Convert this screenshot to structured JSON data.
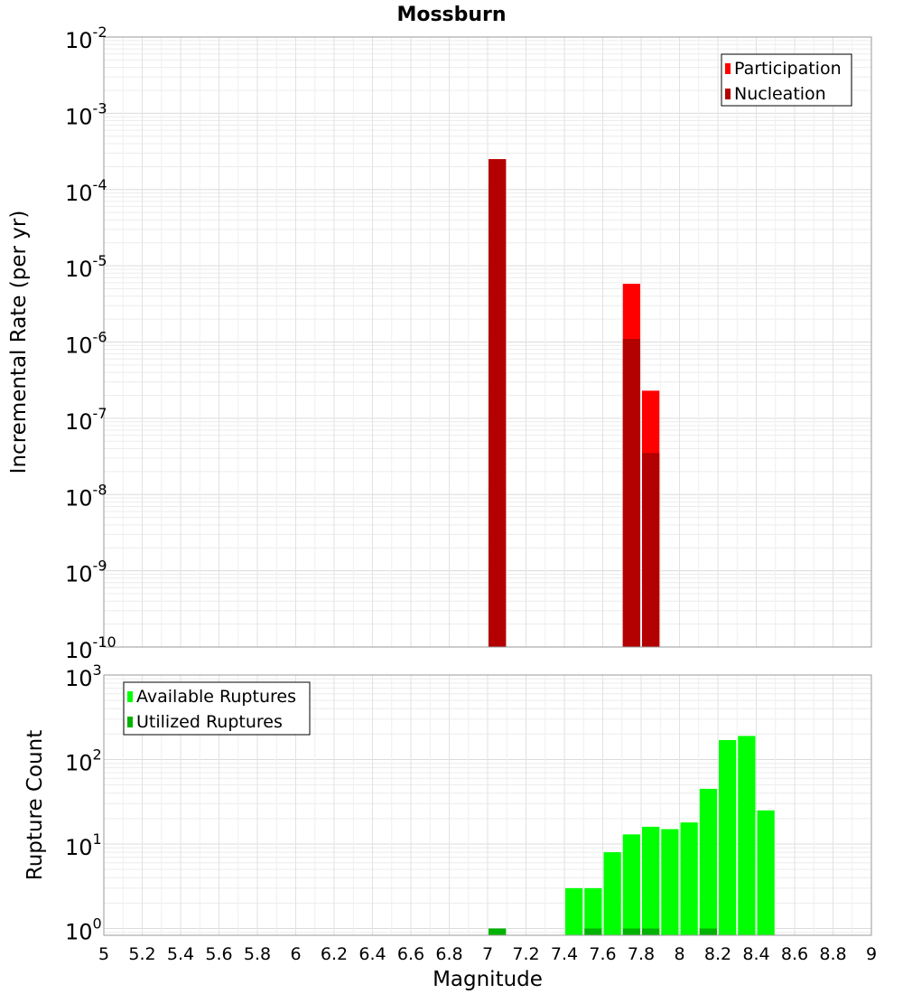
{
  "chart_data": {
    "type": "bar",
    "title": "Mossburn",
    "xlabel": "Magnitude",
    "xlim": [
      5,
      9
    ],
    "x_ticks": [
      "5",
      "5.2",
      "5.4",
      "5.6",
      "5.8",
      "6",
      "6.2",
      "6.4",
      "6.6",
      "6.8",
      "7",
      "7.2",
      "7.4",
      "7.6",
      "7.8",
      "8",
      "8.2",
      "8.4",
      "8.6",
      "8.8",
      "9"
    ],
    "grid": true,
    "panels": [
      {
        "id": "rate",
        "ylabel": "Incremental Rate (per yr)",
        "yscale": "log",
        "ylim_exp": [
          -10,
          -2
        ],
        "legend_position": "top-right",
        "series": [
          {
            "name": "Participation",
            "color": "#ff0000",
            "points": [
              {
                "x": 7.05,
                "y": 0.00025
              },
              {
                "x": 7.75,
                "y": 5.8e-06
              },
              {
                "x": 7.85,
                "y": 2.3e-07
              }
            ]
          },
          {
            "name": "Nucleation",
            "color": "#b30000",
            "points": [
              {
                "x": 7.05,
                "y": 0.00025
              },
              {
                "x": 7.75,
                "y": 1.1e-06
              },
              {
                "x": 7.85,
                "y": 3.5e-08
              }
            ]
          }
        ]
      },
      {
        "id": "count",
        "ylabel": "Rupture Count",
        "yscale": "log",
        "ylim_exp": [
          -0.08,
          3
        ],
        "tick_exps": [
          0,
          1,
          2,
          3
        ],
        "legend_position": "top-left",
        "series": [
          {
            "name": "Available Ruptures",
            "color": "#00ff00",
            "points": [
              {
                "x": 7.05,
                "y": 1
              },
              {
                "x": 7.45,
                "y": 3
              },
              {
                "x": 7.55,
                "y": 3
              },
              {
                "x": 7.65,
                "y": 8
              },
              {
                "x": 7.75,
                "y": 13
              },
              {
                "x": 7.85,
                "y": 16
              },
              {
                "x": 7.95,
                "y": 15
              },
              {
                "x": 8.05,
                "y": 18
              },
              {
                "x": 8.15,
                "y": 45
              },
              {
                "x": 8.25,
                "y": 170
              },
              {
                "x": 8.35,
                "y": 190
              },
              {
                "x": 8.45,
                "y": 25
              }
            ]
          },
          {
            "name": "Utilized Ruptures",
            "color": "#00b300",
            "points": [
              {
                "x": 7.05,
                "y": 1
              },
              {
                "x": 7.55,
                "y": 1
              },
              {
                "x": 7.75,
                "y": 1
              },
              {
                "x": 7.85,
                "y": 1
              },
              {
                "x": 8.15,
                "y": 1
              }
            ]
          }
        ]
      }
    ]
  }
}
